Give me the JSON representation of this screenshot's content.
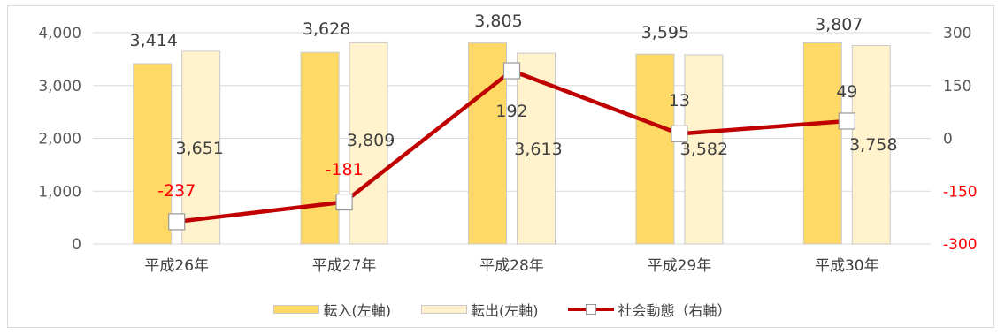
{
  "chart_data": {
    "type": "bar",
    "categories": [
      "平成26年",
      "平成27年",
      "平成28年",
      "平成29年",
      "平成30年"
    ],
    "series": [
      {
        "name": "転入(左軸)",
        "type": "bar",
        "axis": "left",
        "color": "#FFD966",
        "values": [
          3414,
          3628,
          3805,
          3595,
          3807
        ]
      },
      {
        "name": "転出(左軸)",
        "type": "bar",
        "axis": "left",
        "color": "#FFF2CC",
        "values": [
          3651,
          3809,
          3613,
          3582,
          3758
        ]
      },
      {
        "name": "社会動態（右軸）",
        "type": "line",
        "axis": "right",
        "color": "#C00000",
        "values": [
          -237,
          -181,
          192,
          13,
          49
        ]
      }
    ],
    "ylim_left": [
      0,
      4000
    ],
    "yticks_left": [
      0,
      1000,
      2000,
      3000,
      4000
    ],
    "yticklabels_left": [
      "0",
      "1,000",
      "2,000",
      "3,000",
      "4,000"
    ],
    "ylim_right": [
      -300,
      300
    ],
    "yticks_right": [
      -300,
      -150,
      0,
      150,
      300
    ],
    "yticklabels_right": [
      "-300",
      "-150",
      "0",
      "150",
      "300"
    ],
    "data_labels_in": [
      "3,414",
      "3,628",
      "3,805",
      "3,595",
      "3,807"
    ],
    "data_labels_out": [
      "3,651",
      "3,809",
      "3,613",
      "3,582",
      "3,758"
    ],
    "data_labels_net": [
      "-237",
      "-181",
      "192",
      "13",
      "49"
    ],
    "negative_label_color": "#FF0000",
    "grid": true,
    "legend_position": "bottom"
  }
}
